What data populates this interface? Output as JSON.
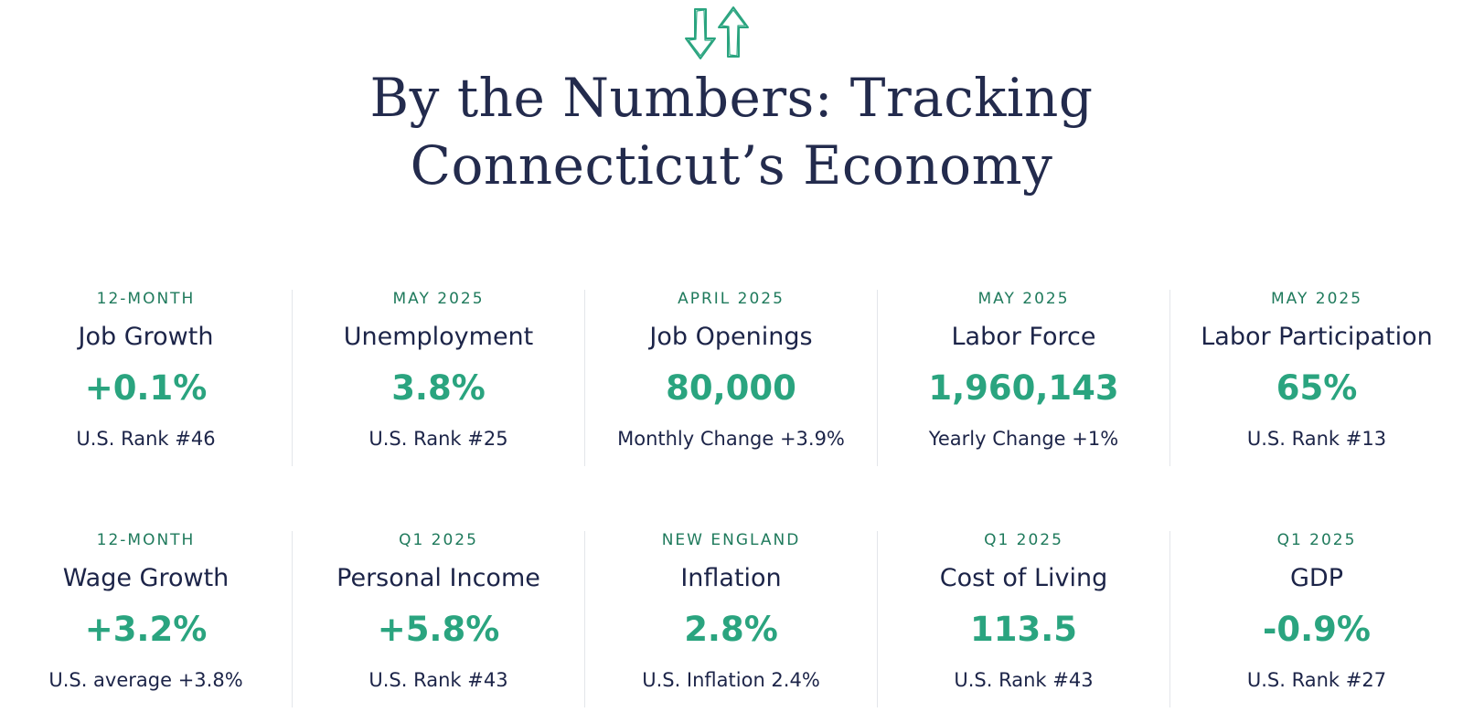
{
  "header": {
    "icon": "up-down-arrows-icon",
    "title_line1": "By the Numbers: Tracking",
    "title_line2": "Connecticut’s Economy"
  },
  "colors": {
    "title": "#232b4d",
    "period": "#1f7a5c",
    "value": "#2aa47f",
    "label": "#1c2448"
  },
  "stats": [
    {
      "period": "12-MONTH",
      "label": "Job Growth",
      "value": "+0.1%",
      "note": "U.S. Rank #46"
    },
    {
      "period": "MAY 2025",
      "label": "Unemployment",
      "value": "3.8%",
      "note": "U.S. Rank #25"
    },
    {
      "period": "APRIL 2025",
      "label": "Job Openings",
      "value": "80,000",
      "note": "Monthly Change +3.9%"
    },
    {
      "period": "MAY 2025",
      "label": "Labor Force",
      "value": "1,960,143",
      "note": "Yearly Change +1%"
    },
    {
      "period": "MAY 2025",
      "label": "Labor Participation",
      "value": "65%",
      "note": "U.S. Rank #13"
    },
    {
      "period": "12-MONTH",
      "label": "Wage Growth",
      "value": "+3.2%",
      "note": "U.S. average +3.8%"
    },
    {
      "period": "Q1 2025",
      "label": "Personal Income",
      "value": "+5.8%",
      "note": "U.S. Rank #43"
    },
    {
      "period": "NEW ENGLAND",
      "label": "Inflation",
      "value": "2.8%",
      "note": "U.S. Inflation 2.4%"
    },
    {
      "period": "Q1 2025",
      "label": "Cost of Living",
      "value": "113.5",
      "note": "U.S. Rank #43"
    },
    {
      "period": "Q1 2025",
      "label": "GDP",
      "value": "-0.9%",
      "note": "U.S. Rank #27"
    }
  ]
}
